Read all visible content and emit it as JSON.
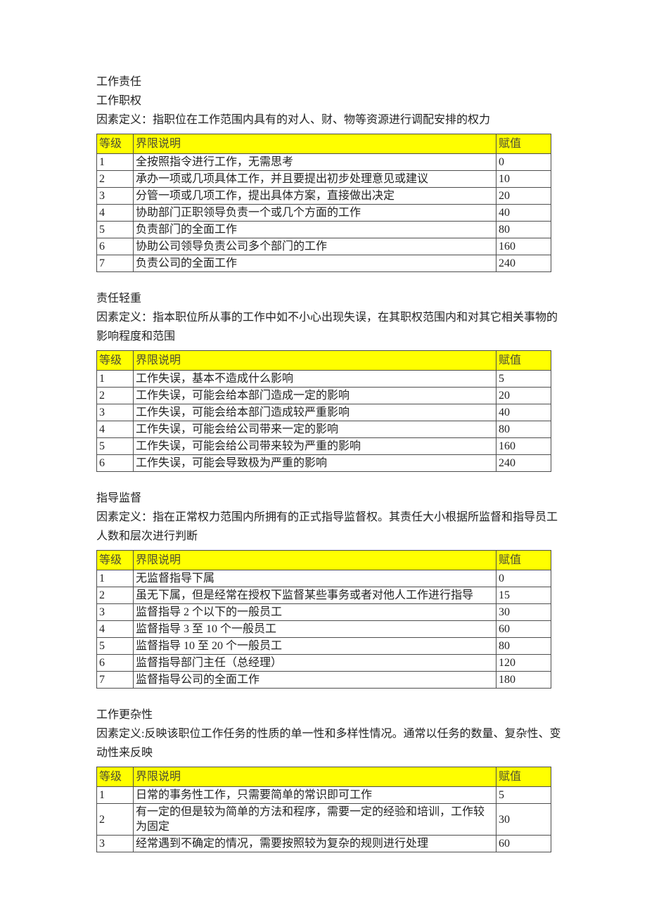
{
  "colors": {
    "page_bg": "#ffffff",
    "header_bg": "#ffff00",
    "header_text": "#4d4d33",
    "body_text": "#212121",
    "border": "#4d4d4d"
  },
  "table_headers": {
    "level": "等级",
    "description": "界限说明",
    "value": "赋值"
  },
  "sections": [
    {
      "headings": [
        "工作责任",
        "工作职权"
      ],
      "definition_lines": [
        "因素定义：指职位在工作范围内具有的对人、财、物等资源进行调配安排的权力"
      ],
      "rows": [
        {
          "level": "1",
          "desc": "全按照指令进行工作，无需思考",
          "value": "0"
        },
        {
          "level": "2",
          "desc": "承办一项或几项具体工作，并且要提出初步处理意见或建议",
          "value": "10"
        },
        {
          "level": "3",
          "desc": "分管一项或几项工作，提出具体方案，直接做出决定",
          "value": "20"
        },
        {
          "level": "4",
          "desc": "协助部门正职领导负责一个或几个方面的工作",
          "value": "40"
        },
        {
          "level": "5",
          "desc": "负责部门的全面工作",
          "value": "80"
        },
        {
          "level": "6",
          "desc": "协助公司领导负责公司多个部门的工作",
          "value": "160"
        },
        {
          "level": "7",
          "desc": "负责公司的全面工作",
          "value": "240"
        }
      ]
    },
    {
      "headings": [
        "责任轻重"
      ],
      "definition_lines": [
        "因素定义：指本职位所从事的工作中如不小心出现失误，在其职权范围内和对其它相关事物的",
        "影响程度和范围"
      ],
      "rows": [
        {
          "level": "1",
          "desc": "工作失误，基本不造成什么影响",
          "value": "5"
        },
        {
          "level": "2",
          "desc": "工作失误，可能会给本部门造成一定的影响",
          "value": "20"
        },
        {
          "level": "3",
          "desc": "工作失误，可能会给本部门造成较严重影响",
          "value": "40"
        },
        {
          "level": "4",
          "desc": "工作失误，可能会给公司带来一定的影响",
          "value": "80"
        },
        {
          "level": "5",
          "desc": "工作失误，可能会给公司带来较为严重的影响",
          "value": "160"
        },
        {
          "level": "6",
          "desc": "工作失误，可能会导致极为严重的影响",
          "value": "240"
        }
      ]
    },
    {
      "headings": [
        "指导监督"
      ],
      "definition_lines": [
        "因素定义：指在正常权力范围内所拥有的正式指导监督权。其责任大小根据所监督和指导员工",
        "人数和层次进行判断"
      ],
      "rows": [
        {
          "level": "1",
          "desc": "无监督指导下属",
          "value": "0"
        },
        {
          "level": "2",
          "desc": "虽无下属，但是经常在授权下监督某些事务或者对他人工作进行指导",
          "value": "15"
        },
        {
          "level": "3",
          "desc": "监督指导 2 个以下的一般员工",
          "value": "30"
        },
        {
          "level": "4",
          "desc": "监督指导 3 至 10 个一般员工",
          "value": "60"
        },
        {
          "level": "5",
          "desc": "监督指导 10 至 20 个一般员工",
          "value": "80"
        },
        {
          "level": "6",
          "desc": "监督指导部门主任（总经理）",
          "value": "120"
        },
        {
          "level": "7",
          "desc": "监督指导公司的全面工作",
          "value": "180"
        }
      ]
    },
    {
      "headings": [
        "工作更杂性"
      ],
      "definition_lines": [
        "因素定义:反映该职位工作任务的性质的单一性和多样性情况。通常以任务的数量、复杂性、变",
        "动性来反映"
      ],
      "rows": [
        {
          "level": "1",
          "desc": "日常的事务性工作，只需要简单的常识即可工作",
          "value": "5"
        },
        {
          "level": "2",
          "desc": "有一定的但是较为简单的方法和程序，需要一定的经验和培训，工作较为固定",
          "value": "30"
        },
        {
          "level": "3",
          "desc": "经常遇到不确定的情况，需要按照较为复杂的规则进行处理",
          "value": "60"
        }
      ]
    }
  ]
}
